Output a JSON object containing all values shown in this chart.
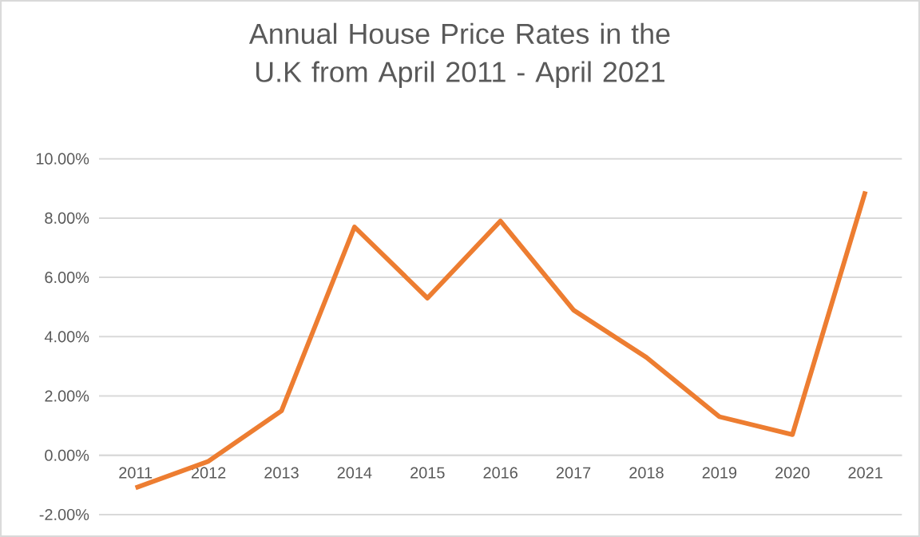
{
  "chart_data": {
    "type": "line",
    "title": "Annual House Price Rates in the U.K from April 2011 - April 2021",
    "categories": [
      "2011",
      "2012",
      "2013",
      "2014",
      "2015",
      "2016",
      "2017",
      "2018",
      "2019",
      "2020",
      "2021"
    ],
    "series": [
      {
        "color": "#ed7d31",
        "values": [
          -1.1,
          -0.2,
          1.5,
          7.7,
          5.3,
          7.9,
          4.9,
          3.3,
          1.3,
          0.7,
          8.9
        ]
      }
    ],
    "ylim": [
      -2,
      10
    ],
    "yticks": [
      {
        "value": -2,
        "label": "-2.00%"
      },
      {
        "value": 0,
        "label": "0.00%"
      },
      {
        "value": 2,
        "label": "2.00%"
      },
      {
        "value": 4,
        "label": "4.00%"
      },
      {
        "value": 6,
        "label": "6.00%"
      },
      {
        "value": 8,
        "label": "8.00%"
      },
      {
        "value": 10,
        "label": "10.00%"
      }
    ],
    "grid": "y",
    "legend": false,
    "marker": "none",
    "line_style": "solid"
  }
}
